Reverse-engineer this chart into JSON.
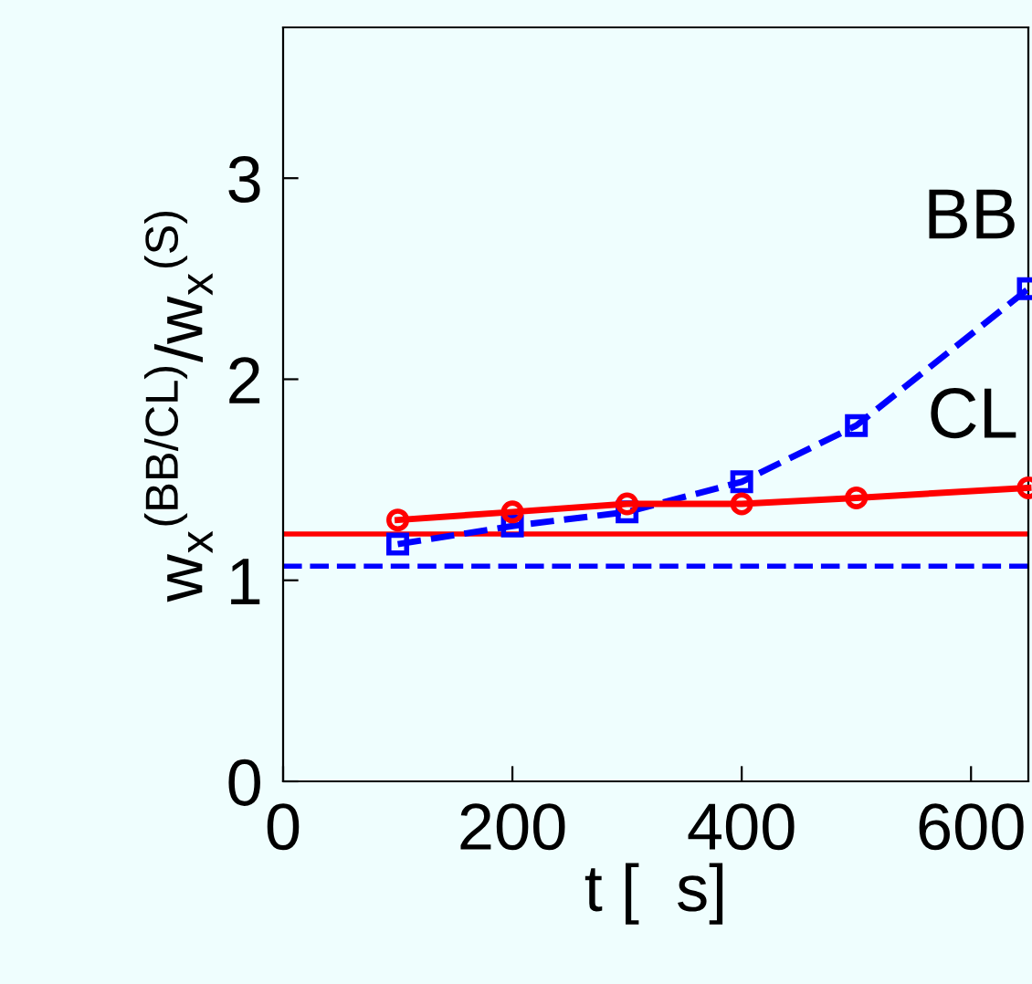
{
  "chart_data": {
    "type": "line",
    "xlabel": "t [  s]",
    "ylabel": "w$_{x}$$^{(BB/CL)}$/w$_{x}$$^{(S)}$",
    "x": [
      100,
      200,
      300,
      400,
      500,
      650
    ],
    "series": [
      {
        "name": "BB",
        "color": "#0000ff",
        "values": [
          1.18,
          1.27,
          1.34,
          1.49,
          1.77,
          2.45
        ],
        "marker": "square",
        "line_style": "dashed"
      },
      {
        "name": "CL",
        "color": "#ff0000",
        "values": [
          1.3,
          1.34,
          1.38,
          1.38,
          1.41,
          1.46
        ],
        "marker": "circle",
        "line_style": "solid"
      }
    ],
    "ref_lines": [
      {
        "axis": "y",
        "value": 1.23,
        "color": "#ff0000",
        "line_style": "solid"
      },
      {
        "axis": "y",
        "value": 1.07,
        "color": "#0000ff",
        "line_style": "dashed"
      }
    ],
    "xlim": [
      0,
      650
    ],
    "ylim": [
      0,
      3.75
    ],
    "xticks": [
      0,
      200,
      400,
      600
    ],
    "yticks": [
      0,
      1,
      2,
      3
    ],
    "grid": false,
    "legend": false
  }
}
